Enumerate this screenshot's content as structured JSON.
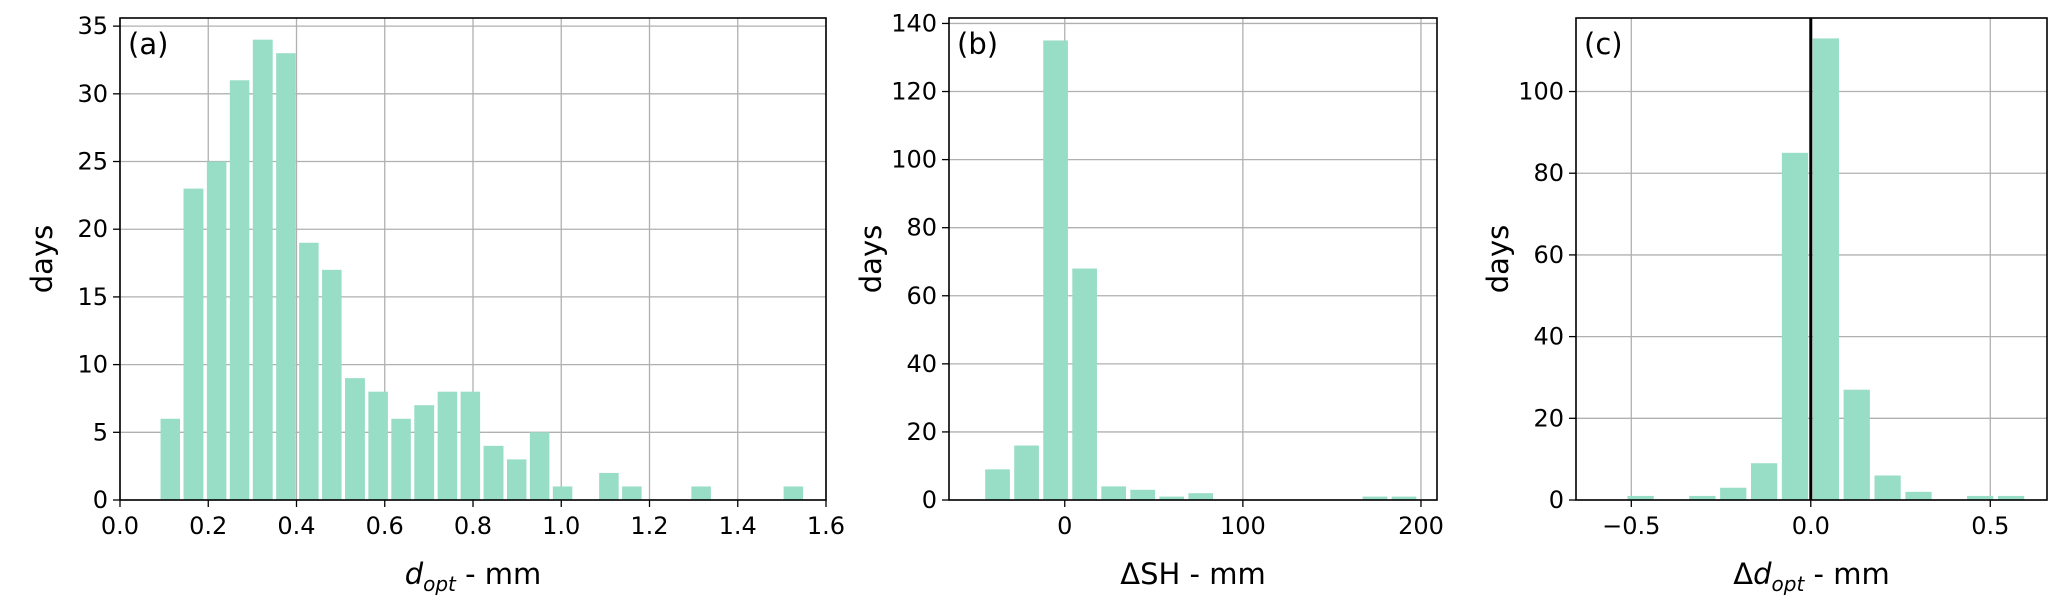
{
  "chart_data": [
    {
      "type": "histogram",
      "annotation": "(a)",
      "ylabel": "days",
      "xlabel": [
        {
          "text": "d",
          "style": "italic"
        },
        {
          "text": "opt",
          "style": "sub"
        },
        {
          "text": " - mm"
        }
      ],
      "color": "#98ddc5",
      "grid": true,
      "bins": [
        0.088,
        0.14,
        0.193,
        0.245,
        0.297,
        0.35,
        0.402,
        0.454,
        0.506,
        0.559,
        0.611,
        0.663,
        0.716,
        0.768,
        0.82,
        0.873,
        0.925,
        0.977,
        1.029,
        1.082,
        1.134,
        1.186,
        1.239,
        1.291,
        1.343,
        1.396,
        1.448,
        1.5,
        1.552
      ],
      "values": [
        6,
        23,
        25,
        31,
        34,
        33,
        19,
        17,
        9,
        8,
        6,
        7,
        8,
        8,
        4,
        3,
        5,
        1,
        0,
        2,
        1,
        0,
        0,
        1,
        0,
        0,
        0,
        1
      ],
      "xlim": [
        0,
        1.6
      ],
      "ylim": [
        0,
        35.6
      ],
      "xticks": [
        {
          "value": 0,
          "label": "0.0"
        },
        {
          "value": 0.2,
          "label": "0.2"
        },
        {
          "value": 0.4,
          "label": "0.4"
        },
        {
          "value": 0.6,
          "label": "0.6"
        },
        {
          "value": 0.8,
          "label": "0.8"
        },
        {
          "value": 1.0,
          "label": "1.0"
        },
        {
          "value": 1.2,
          "label": "1.2"
        },
        {
          "value": 1.4,
          "label": "1.4"
        },
        {
          "value": 1.6,
          "label": "1.6"
        }
      ],
      "yticks": [
        0,
        5,
        10,
        15,
        20,
        25,
        30,
        35
      ]
    },
    {
      "type": "histogram",
      "annotation": "(b)",
      "ylabel": "days",
      "xlabel": [
        {
          "text": "ΔSH - mm"
        }
      ],
      "color": "#98ddc5",
      "grid": true,
      "bins": [
        -45.9,
        -29.6,
        -13.3,
        3.0,
        19.3,
        35.6,
        51.9,
        68.2,
        84.5,
        100.8,
        117.1,
        133.4,
        149.7,
        166.0,
        182.3,
        198.6
      ],
      "values": [
        9,
        16,
        135,
        68,
        4,
        3,
        1,
        2,
        0,
        0,
        0,
        0,
        0,
        1,
        1
      ],
      "xlim": [
        -65,
        209
      ],
      "ylim": [
        0,
        141.6
      ],
      "xticks": [
        0,
        100,
        200
      ],
      "yticks": [
        0,
        20,
        40,
        60,
        80,
        100,
        120,
        140
      ]
    },
    {
      "type": "histogram",
      "annotation": "(c)",
      "ylabel": "days",
      "xlabel": [
        {
          "text": "Δ"
        },
        {
          "text": "d",
          "style": "italic"
        },
        {
          "text": "opt",
          "style": "sub"
        },
        {
          "text": " - mm"
        }
      ],
      "color": "#98ddc5",
      "grid": true,
      "vlines": [
        0
      ],
      "bins": [
        -0.517,
        -0.431,
        -0.345,
        -0.259,
        -0.173,
        -0.087,
        -0.001,
        0.085,
        0.171,
        0.257,
        0.343,
        0.429,
        0.515,
        0.601
      ],
      "values": [
        1,
        0,
        1,
        3,
        9,
        85,
        113,
        27,
        6,
        2,
        0,
        1,
        1
      ],
      "xlim": [
        -0.654,
        0.658
      ],
      "ylim": [
        0,
        118
      ],
      "xticks": [
        {
          "value": -0.5,
          "label": "−0.5"
        },
        {
          "value": 0.0,
          "label": "0.0"
        },
        {
          "value": 0.5,
          "label": "0.5"
        }
      ],
      "yticks": [
        0,
        20,
        40,
        60,
        80,
        100
      ]
    }
  ]
}
